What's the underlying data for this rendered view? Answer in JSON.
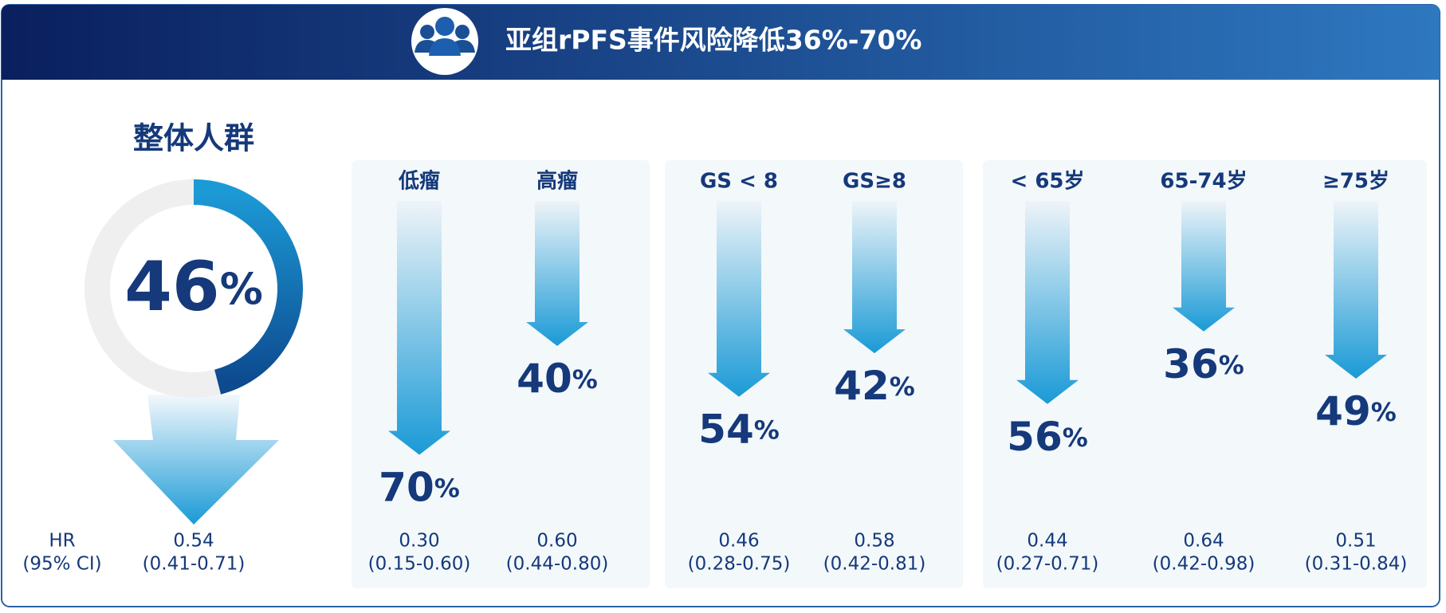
{
  "header": {
    "title": "亚组rPFS事件风险降低36%-70%"
  },
  "chart_data": {
    "type": "arrow",
    "overall": {
      "name": "整体人群",
      "value": 46,
      "value_label": "46%",
      "hr": "0.54",
      "ci": "(0.41-0.71)"
    },
    "hr_label": "HR",
    "ci_label": "(95% CI)",
    "color": "#1a9ad6",
    "text_color": "#15397a",
    "groups": [
      {
        "categories": [
          "低瘤",
          "高瘤"
        ],
        "values": [
          70,
          40
        ],
        "value_labels": [
          "70%",
          "40%"
        ],
        "hr": [
          "0.30",
          "0.60"
        ],
        "ci": [
          "(0.15-0.60)",
          "(0.44-0.80)"
        ]
      },
      {
        "categories": [
          "GS < 8",
          "GS≥8"
        ],
        "values": [
          54,
          42
        ],
        "value_labels": [
          "54%",
          "42%"
        ],
        "hr": [
          "0.46",
          "0.58"
        ],
        "ci": [
          "(0.28-0.75)",
          "(0.42-0.81)"
        ]
      },
      {
        "categories": [
          "< 65岁",
          "65-74岁",
          "≥75岁"
        ],
        "values": [
          56,
          36,
          49
        ],
        "value_labels": [
          "56%",
          "36%",
          "49%"
        ],
        "hr": [
          "0.44",
          "0.64",
          "0.51"
        ],
        "ci": [
          "(0.27-0.71)",
          "(0.42-0.98)",
          "(0.31-0.84)"
        ]
      }
    ]
  }
}
